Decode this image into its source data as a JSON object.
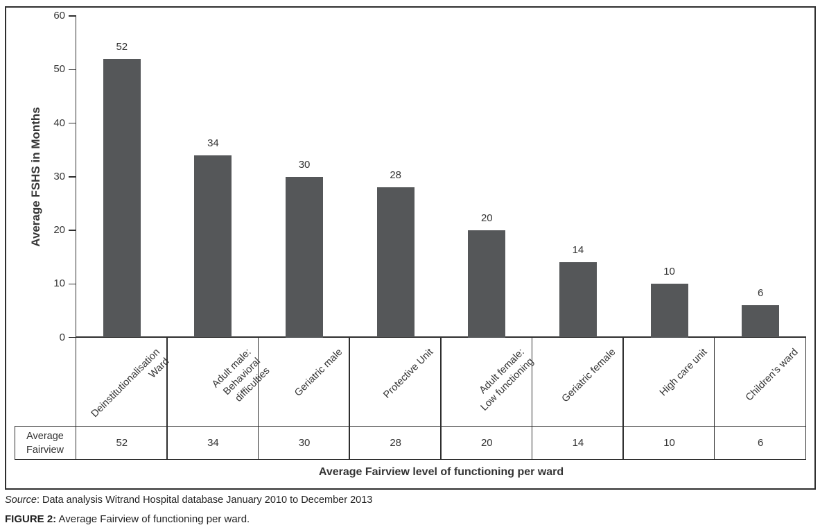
{
  "chart_data": {
    "type": "bar",
    "title": "",
    "categories": [
      "Deinstitutionalisation\nWard",
      "Adult male:\nBehavioral difficulties",
      "Geriatric male",
      "Protective Unit",
      "Adult female:\nLow functioning",
      "Geriatric female",
      "High care unit",
      "Children’s ward"
    ],
    "values": [
      52,
      34,
      30,
      28,
      20,
      14,
      10,
      6
    ],
    "series_name": "Average Fairview",
    "table_row_label": "Average\nFairview",
    "xlabel": "Average Fairview level of functioning per ward",
    "ylabel": "Average FSHS in Months",
    "ylim": [
      0,
      60
    ],
    "yticks": [
      0,
      10,
      20,
      30,
      40,
      50,
      60
    ],
    "grid": false,
    "legend": "none",
    "bar_color": "#555759",
    "axis_color": "#2e2e2e",
    "data_labels_shown": true
  },
  "footer": {
    "source_prefix": "Source",
    "source_rest": ": Data analysis Witrand Hospital database January 2010 to December 2013",
    "figure_label": "FIGURE 2:",
    "figure_text": " Average Fairview of functioning per ward."
  }
}
